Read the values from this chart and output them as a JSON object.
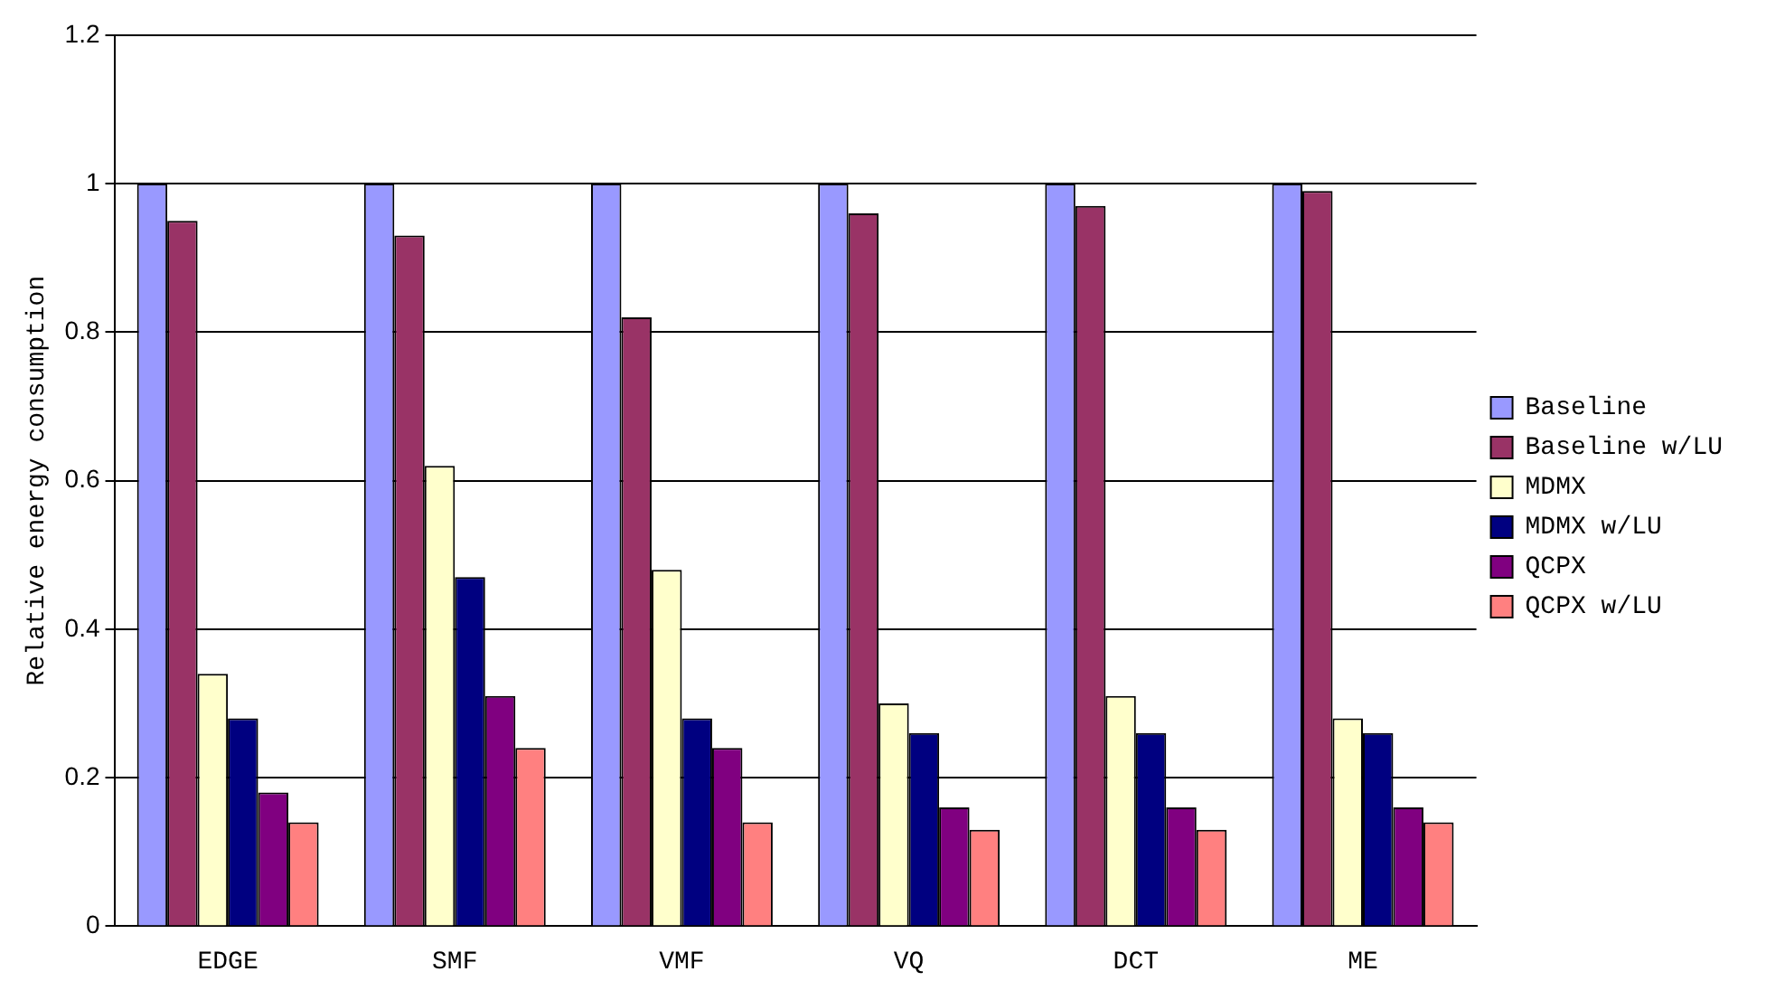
{
  "chart_data": {
    "type": "bar",
    "ylabel": "Relative energy consumption",
    "categories": [
      "EDGE",
      "SMF",
      "VMF",
      "VQ",
      "DCT",
      "ME"
    ],
    "series": [
      {
        "name": "Baseline",
        "color": "#9999ff",
        "values": [
          1,
          1,
          1,
          1,
          1,
          1
        ]
      },
      {
        "name": "Baseline w/LU",
        "color": "#993366",
        "values": [
          0.95,
          0.93,
          0.82,
          0.96,
          0.97,
          0.99
        ]
      },
      {
        "name": "MDMX",
        "color": "#ffffcc",
        "values": [
          0.34,
          0.62,
          0.48,
          0.3,
          0.31,
          0.28
        ]
      },
      {
        "name": "MDMX w/LU",
        "color": "#000080",
        "values": [
          0.28,
          0.47,
          0.28,
          0.26,
          0.26,
          0.26
        ]
      },
      {
        "name": "QCPX",
        "color": "#800080",
        "values": [
          0.18,
          0.31,
          0.24,
          0.16,
          0.16,
          0.16
        ]
      },
      {
        "name": "QCPX w/LU",
        "color": "#ff8080",
        "values": [
          0.14,
          0.24,
          0.14,
          0.13,
          0.13,
          0.14
        ]
      }
    ],
    "ylim": [
      0,
      1.2
    ],
    "yticks": [
      0,
      0.2,
      0.4,
      0.6,
      0.8,
      1,
      1.2
    ],
    "grid": "y",
    "legend": "right"
  }
}
